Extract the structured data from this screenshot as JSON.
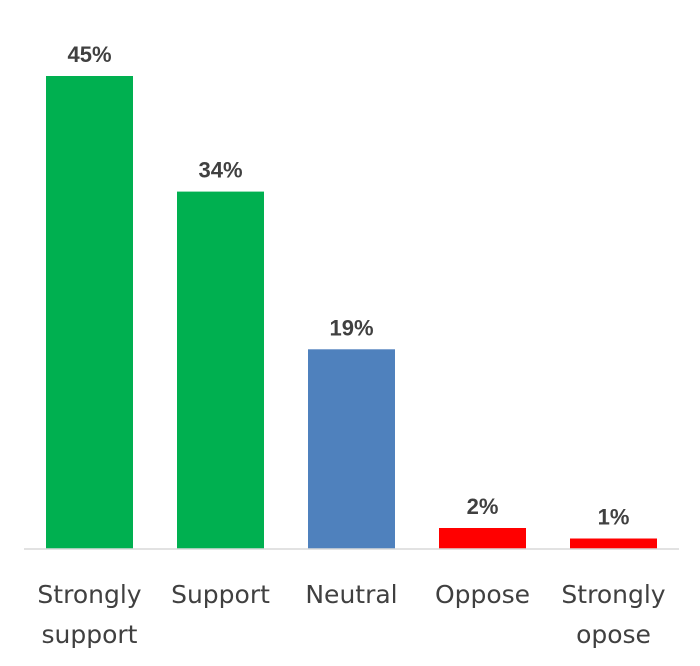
{
  "chart_data": {
    "type": "bar",
    "title": "",
    "xlabel": "",
    "ylabel": "",
    "categories": [
      [
        "Strongly",
        "support"
      ],
      [
        "Support"
      ],
      [
        "Neutral"
      ],
      [
        "Oppose"
      ],
      [
        "Strongly",
        "opose"
      ]
    ],
    "values": [
      45,
      34,
      19,
      2,
      1
    ],
    "data_labels": [
      "45%",
      "34%",
      "19%",
      "2%",
      "1%"
    ],
    "unit": "%",
    "ylim": [
      0,
      45
    ],
    "colors": [
      "#00b050",
      "#00b050",
      "#4f81bd",
      "#ff0000",
      "#ff0000"
    ],
    "grid": false,
    "legend": "none"
  }
}
